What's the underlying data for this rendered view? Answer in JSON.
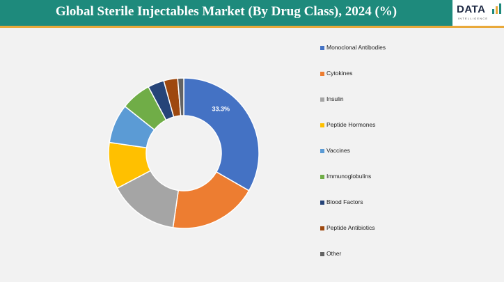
{
  "header": {
    "title": "Global Sterile Injectables Market (By Drug Class), 2024 (%)",
    "logo_text": "DATA",
    "logo_subtext": "INTELLIGENCE"
  },
  "colors": {
    "header_bg": "#1e8a7c",
    "header_accent": "#e9a93a",
    "background": "#f2f2f2"
  },
  "chart_data": {
    "type": "pie",
    "style": "donut",
    "legend_position": "right",
    "categories": [
      "Monoclonal Antibodies",
      "Cytokines",
      "Insulin",
      "Peptide Hormones",
      "Vaccines",
      "Immunoglobulins",
      "Blood Factors",
      "Peptide Antibiotics",
      "Other"
    ],
    "values": [
      33.3,
      19.0,
      15.0,
      10.0,
      8.4,
      6.5,
      3.5,
      3.0,
      1.3
    ],
    "colors": [
      "#4472c4",
      "#ed7d31",
      "#a5a5a5",
      "#ffc000",
      "#5b9bd5",
      "#70ad47",
      "#264478",
      "#9e480e",
      "#636363"
    ],
    "data_labels": [
      "33.3%",
      "",
      "",
      "",
      "",
      "",
      "",
      "",
      ""
    ]
  }
}
